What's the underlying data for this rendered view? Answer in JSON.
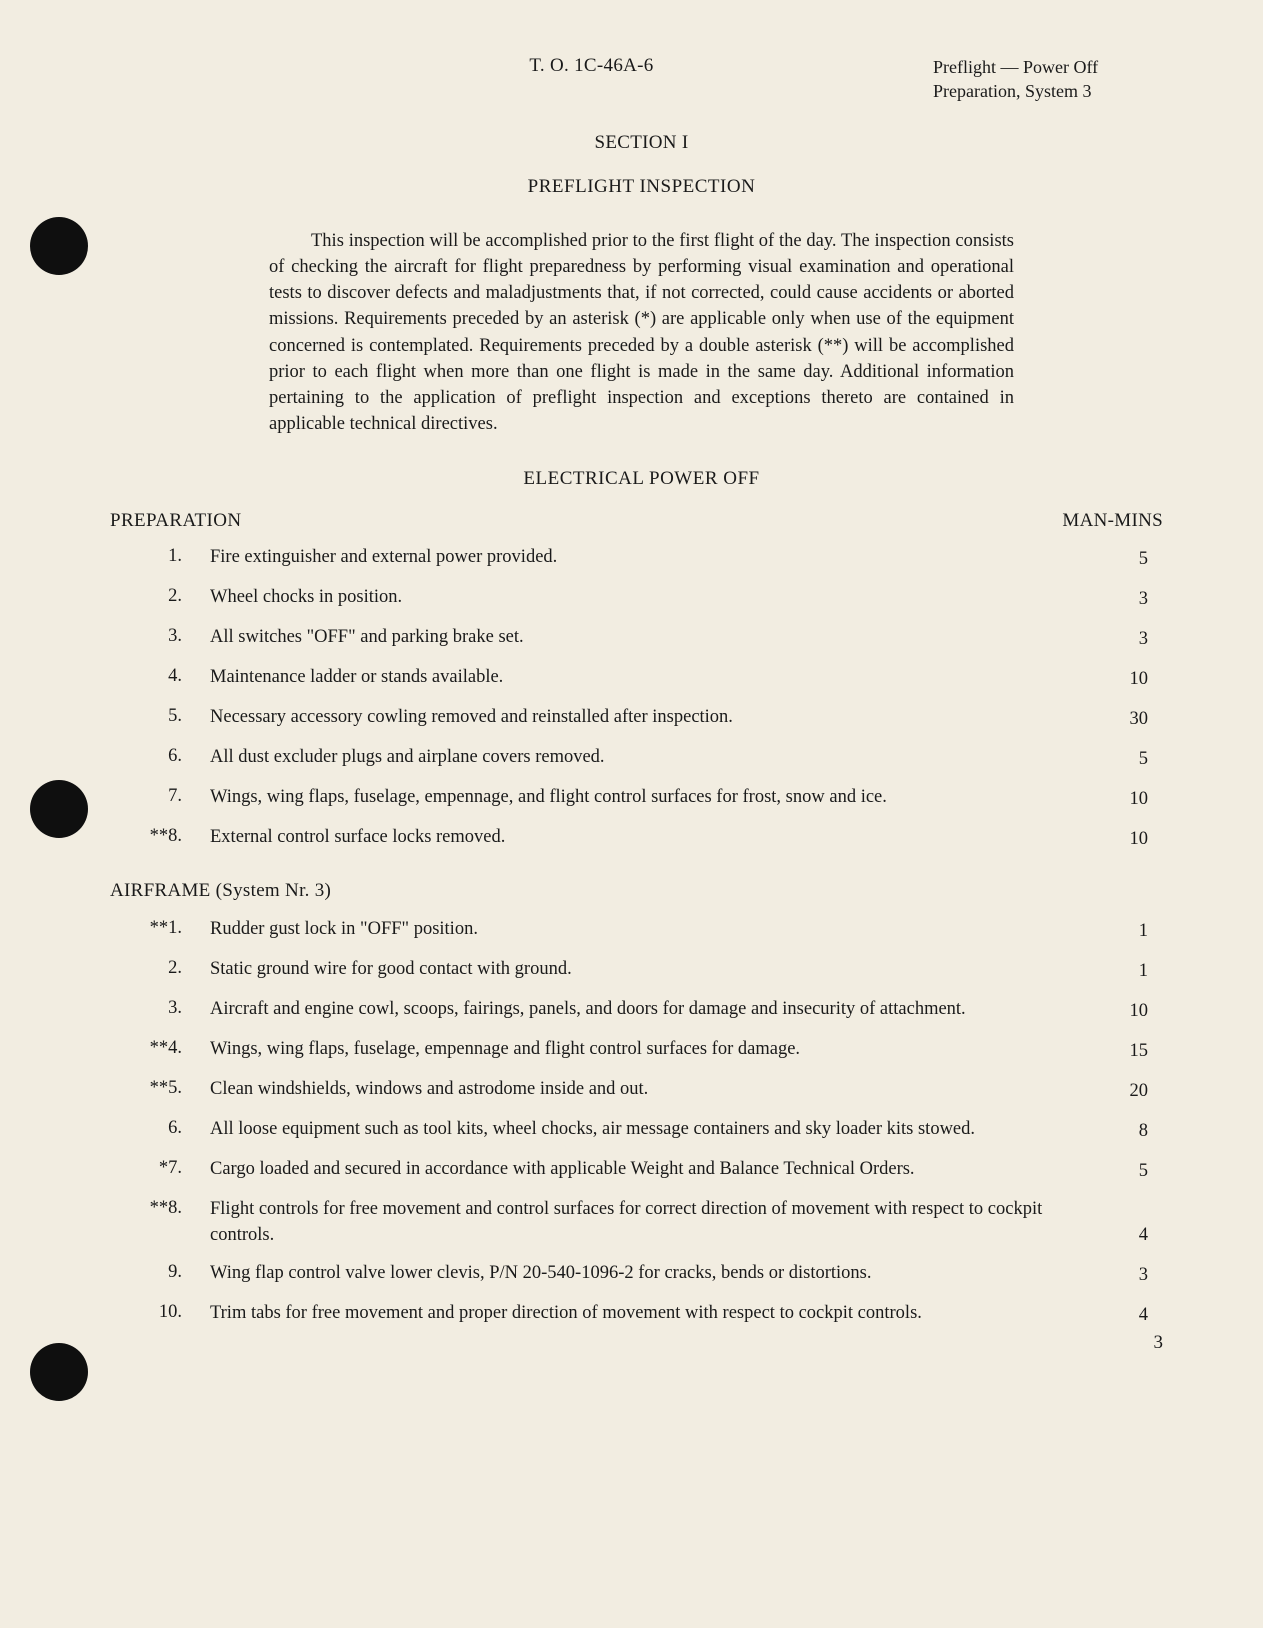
{
  "header": {
    "doc_id": "T. O. 1C-46A-6",
    "right_line1": "Preflight — Power Off",
    "right_line2": "Preparation, System 3"
  },
  "section_label": "SECTION I",
  "title": "PREFLIGHT INSPECTION",
  "intro": "This inspection will be accomplished prior to the first flight of the day. The inspection consists of checking the aircraft for flight preparedness by performing visual examination and operational tests to discover defects and maladjustments that, if not corrected, could cause accidents or aborted missions. Requirements preceded by an asterisk (*) are applicable only when use of the equipment concerned is contemplated. Requirements preceded by a double asterisk (**) will be accomplished prior to each flight when more than one flight is made in the same day. Additional information pertaining to the application of preflight inspection and exceptions thereto are contained in applicable technical directives.",
  "subheading": "ELECTRICAL POWER OFF",
  "column_label": "MAN-MINS",
  "groups": [
    {
      "label": "PREPARATION",
      "items": [
        {
          "num": "1.",
          "text": "Fire extinguisher and external power provided.",
          "mins": "5"
        },
        {
          "num": "2.",
          "text": "Wheel chocks in position.",
          "mins": "3"
        },
        {
          "num": "3.",
          "text": "All switches \"OFF\" and parking brake set.",
          "mins": "3"
        },
        {
          "num": "4.",
          "text": "Maintenance ladder or stands available.",
          "mins": "10"
        },
        {
          "num": "5.",
          "text": "Necessary accessory cowling removed and reinstalled after inspection.",
          "mins": "30"
        },
        {
          "num": "6.",
          "text": "All dust excluder plugs and airplane covers removed.",
          "mins": "5"
        },
        {
          "num": "7.",
          "text": "Wings, wing flaps, fuselage, empennage, and flight control surfaces for frost, snow and ice.",
          "mins": "10"
        },
        {
          "num": "**8.",
          "text": "External control surface locks removed.",
          "mins": "10"
        }
      ]
    },
    {
      "label": "AIRFRAME (System Nr. 3)",
      "items": [
        {
          "num": "**1.",
          "text": "Rudder gust lock in \"OFF\" position.",
          "mins": "1"
        },
        {
          "num": "2.",
          "text": "Static ground wire for good contact with ground.",
          "mins": "1"
        },
        {
          "num": "3.",
          "text": "Aircraft and engine cowl, scoops, fairings, panels, and doors for damage and insecurity of attachment.",
          "mins": "10"
        },
        {
          "num": "**4.",
          "text": "Wings, wing flaps, fuselage, empennage and flight control surfaces for damage.",
          "mins": "15"
        },
        {
          "num": "**5.",
          "text": "Clean windshields, windows and astrodome inside and out.",
          "mins": "20"
        },
        {
          "num": "6.",
          "text": "All loose equipment such as tool kits, wheel chocks, air message containers and sky loader kits stowed.",
          "mins": "8"
        },
        {
          "num": "*7.",
          "text": "Cargo loaded and secured in accordance with applicable Weight and Balance Technical Orders.",
          "mins": "5"
        },
        {
          "num": "**8.",
          "text": "Flight controls for free movement and control surfaces for correct direction of movement with respect to cockpit controls.",
          "mins": "4"
        },
        {
          "num": "9.",
          "text": "Wing flap control valve lower clevis, P/N 20-540-1096-2 for cracks, bends or distortions.",
          "mins": "3"
        },
        {
          "num": "10.",
          "text": "Trim tabs for free movement and proper direction of movement with respect to cockpit controls.",
          "mins": "4"
        }
      ]
    }
  ],
  "page_number": "3",
  "colors": {
    "page_bg": "#f2ede1",
    "text": "#1a1a1a",
    "punch_hole": "#0f0f0f"
  },
  "typography": {
    "font_family": "Times New Roman",
    "body_fontsize_pt": 14,
    "heading_fontsize_pt": 14
  }
}
